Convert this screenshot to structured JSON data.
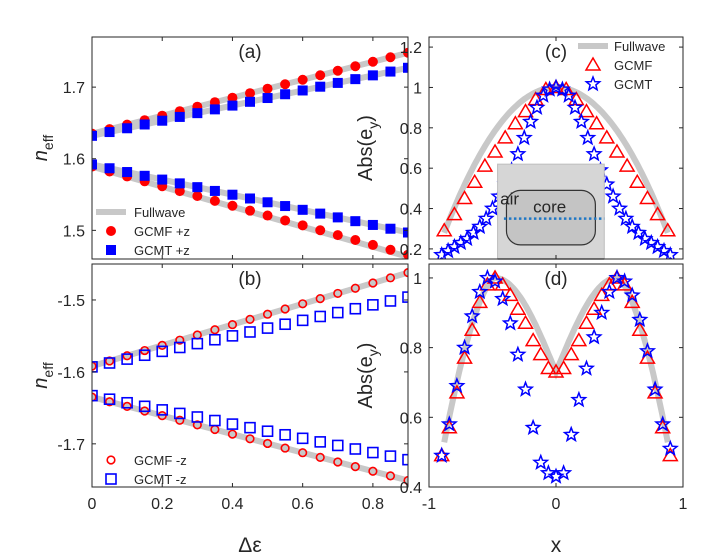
{
  "chart_data": [
    {
      "panel": "(a)",
      "type": "scatter",
      "xlabel": "",
      "ylabel": "n",
      "ylabel_sub": "eff",
      "xlim": [
        0,
        0.9
      ],
      "ylim": [
        1.46,
        1.77
      ],
      "xticks": [
        0,
        0.2,
        0.4,
        0.6,
        0.8
      ],
      "xtick_labels": [
        "",
        "",
        "",
        "",
        ""
      ],
      "yticks": [
        1.5,
        1.6,
        1.7
      ],
      "ytick_labels": [
        "1.5",
        "1.6",
        "1.7"
      ],
      "legend": "bottom-left",
      "legend_entries": [
        "Fullwave",
        "GCMF +z",
        "GCMT +z"
      ],
      "series": [
        {
          "name": "Fullwave",
          "style": "fullwave",
          "color": "#c8c8c8",
          "lines": [
            {
              "x": [
                0,
                0.9
              ],
              "y": [
                1.635,
                1.748
              ]
            },
            {
              "x": [
                0,
                0.9
              ],
              "y": [
                1.632,
                1.727
              ]
            },
            {
              "x": [
                0,
                0.9
              ],
              "y": [
                1.592,
                1.497
              ]
            },
            {
              "x": [
                0,
                0.9
              ],
              "y": [
                1.589,
                1.463
              ]
            }
          ]
        },
        {
          "name": "GCMF +z",
          "marker": "filled-circle",
          "color": "#ff0000",
          "branches": [
            {
              "x0": 0,
              "x1": 0.9,
              "y0": 1.635,
              "y1": 1.748,
              "n": 19
            },
            {
              "x0": 0,
              "x1": 0.9,
              "y0": 1.589,
              "y1": 1.466,
              "n": 19
            }
          ]
        },
        {
          "name": "GCMT +z",
          "marker": "filled-square",
          "color": "#0000ff",
          "branches": [
            {
              "x0": 0,
              "x1": 0.9,
              "y0": 1.632,
              "y1": 1.727,
              "n": 19
            },
            {
              "x0": 0,
              "x1": 0.9,
              "y0": 1.592,
              "y1": 1.497,
              "n": 19
            }
          ]
        }
      ]
    },
    {
      "panel": "(b)",
      "type": "scatter",
      "xlabel": "Δε",
      "ylabel": "n",
      "ylabel_sub": "eff",
      "xlim": [
        0,
        0.9
      ],
      "ylim": [
        -1.76,
        -1.45
      ],
      "xticks": [
        0,
        0.2,
        0.4,
        0.6,
        0.8
      ],
      "xtick_labels": [
        "0",
        "0.2",
        "0.4",
        "0.6",
        "0.8"
      ],
      "yticks": [
        -1.5,
        -1.6,
        -1.7
      ],
      "ytick_labels": [
        "-1.5",
        "-1.6",
        "-1.7"
      ],
      "legend": "bottom-left",
      "legend_entries": [
        "GCMF -z",
        "GCMT -z"
      ],
      "series": [
        {
          "name": "Fullwave",
          "style": "fullwave",
          "color": "#c8c8c8",
          "lines": [
            {
              "x": [
                0,
                0.9
              ],
              "y": [
                -1.592,
                -1.462
              ]
            },
            {
              "x": [
                0,
                0.9
              ],
              "y": [
                -1.635,
                -1.751
              ]
            }
          ]
        },
        {
          "name": "GCMF -z",
          "marker": "open-circle",
          "color": "#ff0000",
          "branches": [
            {
              "x0": 0,
              "x1": 0.9,
              "y0": -1.592,
              "y1": -1.462,
              "n": 19
            },
            {
              "x0": 0,
              "x1": 0.9,
              "y0": -1.635,
              "y1": -1.751,
              "n": 19
            }
          ]
        },
        {
          "name": "GCMT -z",
          "marker": "open-square",
          "color": "#0000ff",
          "branches": [
            {
              "x0": 0,
              "x1": 0.9,
              "y0": -1.593,
              "y1": -1.496,
              "n": 19
            },
            {
              "x0": 0,
              "x1": 0.9,
              "y0": -1.633,
              "y1": -1.722,
              "n": 19
            }
          ]
        }
      ]
    },
    {
      "panel": "(c)",
      "type": "scatter",
      "xlabel": "",
      "ylabel": "Abs(e",
      "ylabel_sub": "y",
      "ylabel_tail": ")",
      "xlim": [
        -1,
        1
      ],
      "ylim": [
        0.15,
        1.25
      ],
      "xticks": [
        -1,
        0,
        1
      ],
      "xtick_labels": [
        "",
        "",
        ""
      ],
      "yticks": [
        0.2,
        0.4,
        0.6,
        0.8,
        1,
        1.2
      ],
      "ytick_labels": [
        "0.2",
        "0.4",
        "0.6",
        "0.8",
        "1",
        "1.2"
      ],
      "legend": "top-right",
      "legend_entries": [
        "Fullwave",
        "GCMF",
        "GCMT"
      ],
      "inset": {
        "labels": [
          "air",
          "core"
        ]
      },
      "series": [
        {
          "name": "Fullwave",
          "style": "fullwave",
          "color": "#c8c8c8",
          "profile": "fullwave_c"
        },
        {
          "name": "GCMF",
          "marker": "open-triangle",
          "color": "#ff0000",
          "x": [
            -0.88,
            -0.8,
            -0.72,
            -0.64,
            -0.56,
            -0.48,
            -0.4,
            -0.32,
            -0.24,
            -0.16,
            -0.08,
            0,
            0.08,
            0.16,
            0.24,
            0.32,
            0.4,
            0.48,
            0.56,
            0.64,
            0.72,
            0.8,
            0.88
          ],
          "y": [
            0.29,
            0.37,
            0.45,
            0.53,
            0.61,
            0.68,
            0.75,
            0.82,
            0.88,
            0.94,
            0.99,
            1.0,
            0.99,
            0.94,
            0.88,
            0.82,
            0.75,
            0.68,
            0.61,
            0.53,
            0.45,
            0.37,
            0.29
          ]
        },
        {
          "name": "GCMT",
          "marker": "open-star",
          "color": "#0000ff",
          "x": [
            -0.9,
            -0.85,
            -0.8,
            -0.75,
            -0.7,
            -0.65,
            -0.6,
            -0.55,
            -0.5,
            -0.45,
            -0.4,
            -0.35,
            -0.3,
            -0.25,
            -0.2,
            -0.15,
            -0.1,
            -0.05,
            0,
            0.05,
            0.1,
            0.15,
            0.2,
            0.25,
            0.3,
            0.35,
            0.4,
            0.45,
            0.5,
            0.55,
            0.6,
            0.65,
            0.7,
            0.75,
            0.8,
            0.85,
            0.9
          ],
          "y": [
            0.17,
            0.19,
            0.21,
            0.23,
            0.25,
            0.28,
            0.31,
            0.35,
            0.4,
            0.46,
            0.52,
            0.59,
            0.67,
            0.75,
            0.83,
            0.9,
            0.96,
            0.99,
            1.0,
            0.99,
            0.96,
            0.9,
            0.83,
            0.75,
            0.67,
            0.59,
            0.52,
            0.46,
            0.4,
            0.35,
            0.31,
            0.28,
            0.25,
            0.23,
            0.21,
            0.19,
            0.17
          ]
        }
      ]
    },
    {
      "panel": "(d)",
      "type": "scatter",
      "xlabel": "x",
      "ylabel": "Abs(e",
      "ylabel_sub": "y",
      "ylabel_tail": ")",
      "xlim": [
        -1,
        1
      ],
      "ylim": [
        0.4,
        1.04
      ],
      "xticks": [
        -1,
        0,
        1
      ],
      "xtick_labels": [
        "-1",
        "0",
        "1"
      ],
      "yticks": [
        0.4,
        0.6,
        0.8,
        1
      ],
      "ytick_labels": [
        "0.4",
        "0.6",
        "0.8",
        "1"
      ],
      "series": [
        {
          "name": "Fullwave",
          "style": "fullwave",
          "color": "#c8c8c8",
          "profile": "fullwave_d"
        },
        {
          "name": "GCMF",
          "marker": "open-triangle",
          "color": "#ff0000",
          "x": [
            -0.9,
            -0.84,
            -0.78,
            -0.72,
            -0.66,
            -0.6,
            -0.54,
            -0.48,
            -0.42,
            -0.36,
            -0.3,
            -0.24,
            -0.18,
            -0.12,
            -0.06,
            0,
            0.06,
            0.12,
            0.18,
            0.24,
            0.3,
            0.36,
            0.42,
            0.48,
            0.54,
            0.6,
            0.66,
            0.72,
            0.78,
            0.84,
            0.9
          ],
          "y": [
            0.49,
            0.57,
            0.67,
            0.77,
            0.85,
            0.93,
            0.98,
            1.0,
            0.98,
            0.95,
            0.91,
            0.87,
            0.82,
            0.78,
            0.74,
            0.73,
            0.74,
            0.78,
            0.82,
            0.87,
            0.91,
            0.95,
            0.98,
            1.0,
            0.98,
            0.93,
            0.85,
            0.77,
            0.67,
            0.57,
            0.49
          ]
        },
        {
          "name": "GCMT",
          "marker": "open-star",
          "color": "#0000ff",
          "x": [
            -0.9,
            -0.84,
            -0.78,
            -0.72,
            -0.66,
            -0.6,
            -0.54,
            -0.48,
            -0.42,
            -0.36,
            -0.3,
            -0.24,
            -0.18,
            -0.12,
            -0.06,
            0,
            0.06,
            0.12,
            0.18,
            0.24,
            0.3,
            0.36,
            0.42,
            0.48,
            0.54,
            0.6,
            0.66,
            0.72,
            0.78,
            0.84,
            0.9
          ],
          "y": [
            0.49,
            0.58,
            0.69,
            0.8,
            0.89,
            0.96,
            1.0,
            0.99,
            0.94,
            0.87,
            0.78,
            0.68,
            0.57,
            0.47,
            0.44,
            0.43,
            0.44,
            0.55,
            0.65,
            0.74,
            0.83,
            0.9,
            0.96,
            1.0,
            0.99,
            0.95,
            0.88,
            0.79,
            0.68,
            0.58,
            0.51
          ]
        }
      ]
    }
  ]
}
